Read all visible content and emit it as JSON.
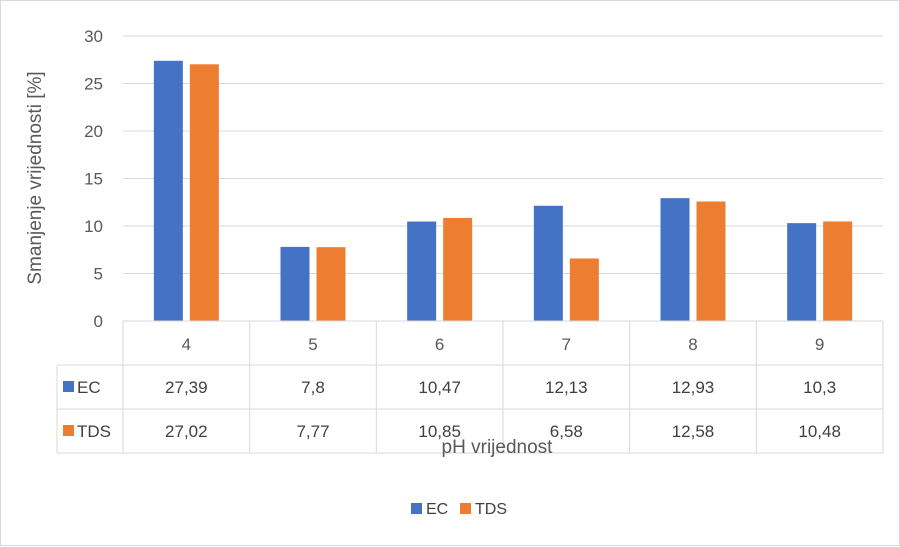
{
  "chart_data": {
    "type": "bar",
    "title": "",
    "xlabel": "pH vrijednost",
    "ylabel": "Smanjenje vrijednosti [%]",
    "ylim": [
      0,
      30
    ],
    "yticks": [
      "0",
      "5",
      "10",
      "15",
      "20",
      "25",
      "30"
    ],
    "grid": true,
    "legend_position": "bottom",
    "categories": [
      "4",
      "5",
      "6",
      "7",
      "8",
      "9"
    ],
    "series": [
      {
        "name": "EC",
        "color": "#4472C4",
        "values": [
          27.39,
          7.8,
          10.47,
          12.13,
          12.93,
          10.3
        ],
        "labels": [
          "27,39",
          "7,8",
          "10,47",
          "12,13",
          "12,93",
          "10,3"
        ]
      },
      {
        "name": "TDS",
        "color": "#ED7D31",
        "values": [
          27.02,
          7.77,
          10.85,
          6.58,
          12.58,
          10.48
        ],
        "labels": [
          "27,02",
          "7,77",
          "10,85",
          "6,58",
          "12,58",
          "10,48"
        ]
      }
    ]
  }
}
